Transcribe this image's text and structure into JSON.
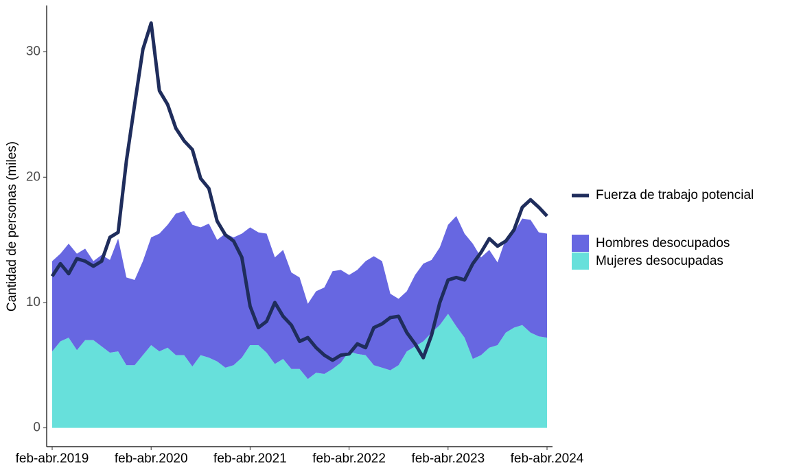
{
  "chart_data": {
    "type": "area",
    "y_label": "Cantidad de personas (miles)",
    "categories": [
      "feb-abr.2019",
      null,
      null,
      null,
      null,
      null,
      null,
      null,
      null,
      null,
      null,
      null,
      "feb-abr.2020",
      null,
      null,
      null,
      null,
      null,
      null,
      null,
      null,
      null,
      null,
      null,
      "feb-abr.2021",
      null,
      null,
      null,
      null,
      null,
      null,
      null,
      null,
      null,
      null,
      null,
      "feb-abr.2022",
      null,
      null,
      null,
      null,
      null,
      null,
      null,
      null,
      null,
      null,
      null,
      "feb-abr.2023",
      null,
      null,
      null,
      null,
      null,
      null,
      null,
      null,
      null,
      null,
      null,
      "feb-abr.2024"
    ],
    "series": [
      {
        "name": "Mujeres desocupadas",
        "type": "area",
        "color": "#67e0db",
        "values": [
          6.1,
          6.9,
          7.2,
          6.2,
          7.0,
          7.0,
          6.5,
          6.0,
          6.1,
          5.0,
          5.0,
          5.8,
          6.6,
          6.1,
          6.4,
          5.8,
          5.8,
          4.9,
          5.8,
          5.6,
          5.3,
          4.8,
          5.0,
          5.6,
          6.6,
          6.6,
          6.0,
          5.1,
          5.5,
          4.7,
          4.7,
          3.9,
          4.4,
          4.3,
          4.7,
          5.2,
          6.1,
          5.9,
          5.8,
          5.0,
          4.8,
          4.6,
          5.0,
          6.1,
          6.5,
          6.9,
          7.6,
          8.2,
          9.1,
          8.1,
          7.2,
          5.5,
          5.8,
          6.4,
          6.6,
          7.6,
          8.0,
          8.2,
          7.6,
          7.3,
          7.2
        ]
      },
      {
        "name": "Hombres desocupados",
        "type": "area",
        "color": "#6767e1",
        "values": [
          7.2,
          7.0,
          7.5,
          7.7,
          7.3,
          6.3,
          7.3,
          7.4,
          9.0,
          7.0,
          6.8,
          7.5,
          8.6,
          9.4,
          9.8,
          11.3,
          11.5,
          11.3,
          10.2,
          10.7,
          9.7,
          10.7,
          10.2,
          9.9,
          9.4,
          9.0,
          9.5,
          8.5,
          8.7,
          7.7,
          7.3,
          6.0,
          6.5,
          6.9,
          7.8,
          7.4,
          6.1,
          6.7,
          7.5,
          8.7,
          8.5,
          6.1,
          5.3,
          4.8,
          5.7,
          6.2,
          5.8,
          6.2,
          7.1,
          8.8,
          8.3,
          9.2,
          7.8,
          7.8,
          6.6,
          7.5,
          7.6,
          8.5,
          9.0,
          8.3,
          8.3
        ]
      },
      {
        "name": "Fuerza de trabajo potencial",
        "type": "line",
        "color": "#1f2d5c",
        "values": [
          12.1,
          13.1,
          12.3,
          13.5,
          13.3,
          12.9,
          13.3,
          15.2,
          15.6,
          21.3,
          25.8,
          30.2,
          32.3,
          26.9,
          25.8,
          23.9,
          22.9,
          22.2,
          19.9,
          19.1,
          16.5,
          15.4,
          14.9,
          13.6,
          9.7,
          8.0,
          8.5,
          10.0,
          8.9,
          8.2,
          6.9,
          7.2,
          6.4,
          5.8,
          5.4,
          5.8,
          5.9,
          6.7,
          6.4,
          8.0,
          8.3,
          8.8,
          8.9,
          7.6,
          6.7,
          5.6,
          7.4,
          10.0,
          11.8,
          12.0,
          11.8,
          13.1,
          14.0,
          15.1,
          14.5,
          14.9,
          15.8,
          17.6,
          18.2,
          17.6,
          16.9
        ]
      }
    ],
    "ylim": [
      -1.5,
      33.7
    ],
    "yticks": [
      0,
      10,
      20,
      30
    ],
    "grid": false
  }
}
